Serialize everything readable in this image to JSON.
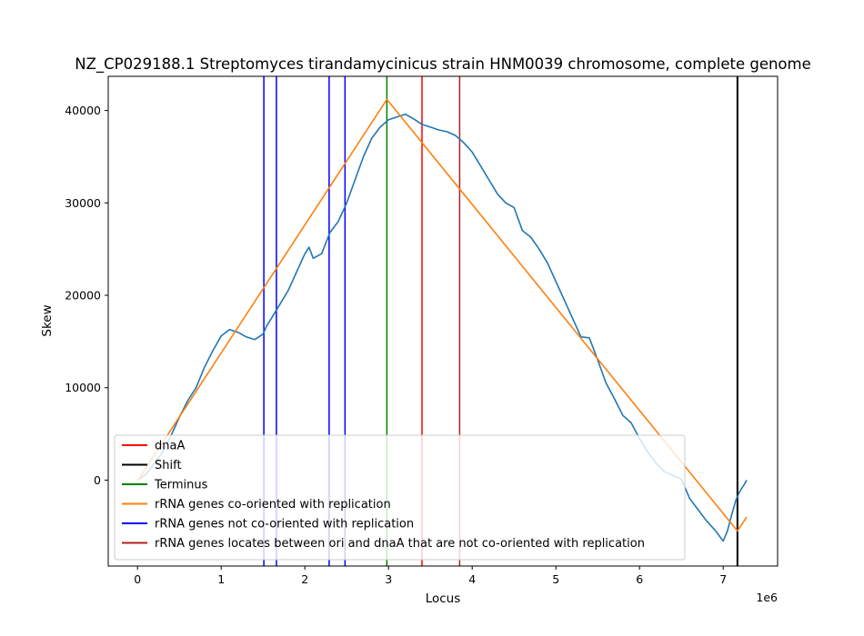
{
  "chart_data": {
    "type": "line",
    "title": "NZ_CP029188.1 Streptomyces tirandamycinicus strain HNM0039 chromosome, complete genome",
    "xlabel": "Locus",
    "ylabel": "Skew",
    "x_offset_label": "1e6",
    "xlim": [
      -0.35,
      7.65
    ],
    "ylim": [
      -9300,
      43700
    ],
    "x_ticks": [
      0,
      1,
      2,
      3,
      4,
      5,
      6,
      7
    ],
    "x_tick_labels": [
      "0",
      "1",
      "2",
      "3",
      "4",
      "5",
      "6",
      "7"
    ],
    "y_ticks": [
      0,
      10000,
      20000,
      30000,
      40000
    ],
    "y_tick_labels": [
      "0",
      "10000",
      "20000",
      "30000",
      "40000"
    ],
    "grid": false,
    "legend_position": "lower-left",
    "series": [
      {
        "kind": "skew",
        "color": "#1f77b4",
        "points": [
          [
            0,
            0
          ],
          [
            0.1,
            600
          ],
          [
            0.2,
            1800
          ],
          [
            0.3,
            3000
          ],
          [
            0.4,
            4800
          ],
          [
            0.5,
            6800
          ],
          [
            0.6,
            8600
          ],
          [
            0.7,
            10000
          ],
          [
            0.8,
            12200
          ],
          [
            0.9,
            14000
          ],
          [
            1.0,
            15600
          ],
          [
            1.1,
            16300
          ],
          [
            1.2,
            16000
          ],
          [
            1.3,
            15500
          ],
          [
            1.4,
            15200
          ],
          [
            1.5,
            15800
          ],
          [
            1.55,
            16800
          ],
          [
            1.6,
            17500
          ],
          [
            1.7,
            19000
          ],
          [
            1.8,
            20500
          ],
          [
            1.9,
            22500
          ],
          [
            2.0,
            24500
          ],
          [
            2.05,
            25200
          ],
          [
            2.1,
            24000
          ],
          [
            2.2,
            24500
          ],
          [
            2.3,
            26800
          ],
          [
            2.4,
            28000
          ],
          [
            2.5,
            30000
          ],
          [
            2.6,
            32500
          ],
          [
            2.7,
            35000
          ],
          [
            2.8,
            37000
          ],
          [
            2.9,
            38200
          ],
          [
            3.0,
            39000
          ],
          [
            3.1,
            39300
          ],
          [
            3.2,
            39600
          ],
          [
            3.3,
            39100
          ],
          [
            3.4,
            38500
          ],
          [
            3.5,
            38200
          ],
          [
            3.6,
            37900
          ],
          [
            3.7,
            37700
          ],
          [
            3.8,
            37300
          ],
          [
            3.9,
            36500
          ],
          [
            4.0,
            35500
          ],
          [
            4.1,
            34000
          ],
          [
            4.2,
            32500
          ],
          [
            4.3,
            31000
          ],
          [
            4.4,
            30000
          ],
          [
            4.5,
            29500
          ],
          [
            4.6,
            27000
          ],
          [
            4.7,
            26300
          ],
          [
            4.8,
            25000
          ],
          [
            4.9,
            23500
          ],
          [
            5.0,
            21500
          ],
          [
            5.1,
            19500
          ],
          [
            5.2,
            17500
          ],
          [
            5.3,
            15500
          ],
          [
            5.4,
            15400
          ],
          [
            5.5,
            13000
          ],
          [
            5.6,
            10500
          ],
          [
            5.7,
            8800
          ],
          [
            5.8,
            7000
          ],
          [
            5.9,
            6200
          ],
          [
            6.0,
            4500
          ],
          [
            6.1,
            3000
          ],
          [
            6.2,
            1800
          ],
          [
            6.3,
            900
          ],
          [
            6.4,
            500
          ],
          [
            6.5,
            100
          ],
          [
            6.6,
            -2000
          ],
          [
            6.7,
            -3200
          ],
          [
            6.8,
            -4400
          ],
          [
            6.9,
            -5400
          ],
          [
            7.0,
            -6600
          ],
          [
            7.05,
            -5500
          ],
          [
            7.1,
            -3800
          ],
          [
            7.15,
            -2200
          ],
          [
            7.2,
            -1200
          ],
          [
            7.25,
            -500
          ],
          [
            7.28,
            0
          ]
        ]
      },
      {
        "kind": "fit",
        "color": "#ff7f0e",
        "points": [
          [
            0,
            -100
          ],
          [
            2.98,
            41200
          ],
          [
            7.17,
            -5500
          ],
          [
            7.28,
            -4000
          ]
        ]
      }
    ],
    "vlines": [
      {
        "x": 1.51,
        "color": "#0000ff",
        "kind": "rRNA genes not co-oriented with replication"
      },
      {
        "x": 1.66,
        "color": "#0000ff",
        "kind": "rRNA genes not co-oriented with replication"
      },
      {
        "x": 2.29,
        "color": "#0000ff",
        "kind": "rRNA genes not co-oriented with replication"
      },
      {
        "x": 2.48,
        "color": "#0000ff",
        "kind": "rRNA genes not co-oriented with replication"
      },
      {
        "x": 2.98,
        "color": "#008000",
        "kind": "Terminus"
      },
      {
        "x": 3.4,
        "color": "#ff0000",
        "kind": "dnaA"
      },
      {
        "x": 3.85,
        "color": "#b22222",
        "kind": "rRNA genes locates between ori and dnaA that are not co-oriented with replication"
      },
      {
        "x": 7.17,
        "color": "#000000",
        "kind": "Shift"
      }
    ],
    "legend": [
      {
        "label": "dnaA",
        "color": "#ff0000"
      },
      {
        "label": "Shift",
        "color": "#000000"
      },
      {
        "label": "Terminus",
        "color": "#008000"
      },
      {
        "label": "rRNA genes co-oriented with replication",
        "color": "#ff7f0e"
      },
      {
        "label": "rRNA genes not co-oriented with replication",
        "color": "#0000ff"
      },
      {
        "label": "rRNA genes locates between ori and dnaA that are not co-oriented with replication",
        "color": "#b22222"
      }
    ]
  }
}
